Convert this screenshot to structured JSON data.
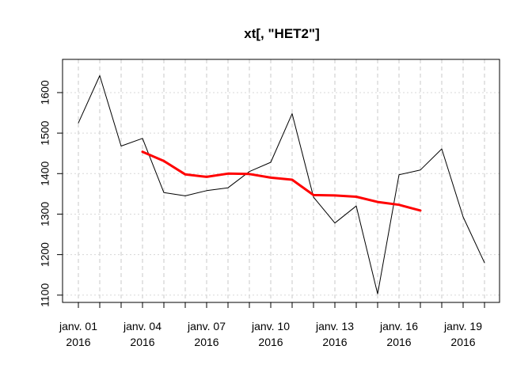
{
  "chart_data": {
    "type": "line",
    "title": "xt[, \"HET2\"]",
    "xlabel": "",
    "ylabel": "",
    "x": [
      "2016-01-01",
      "2016-01-02",
      "2016-01-03",
      "2016-01-04",
      "2016-01-05",
      "2016-01-06",
      "2016-01-07",
      "2016-01-08",
      "2016-01-09",
      "2016-01-10",
      "2016-01-11",
      "2016-01-12",
      "2016-01-13",
      "2016-01-14",
      "2016-01-15",
      "2016-01-16",
      "2016-01-17",
      "2016-01-18",
      "2016-01-19",
      "2016-01-20"
    ],
    "ylim": [
      1082,
      1682
    ],
    "yticks": [
      1100,
      1200,
      1300,
      1400,
      1500,
      1600
    ],
    "xtick_labels": [
      {
        "date": "2016-01-01",
        "line1": "janv. 01",
        "line2": "2016"
      },
      {
        "date": "2016-01-04",
        "line1": "janv. 04",
        "line2": "2016"
      },
      {
        "date": "2016-01-07",
        "line1": "janv. 07",
        "line2": "2016"
      },
      {
        "date": "2016-01-10",
        "line1": "janv. 10",
        "line2": "2016"
      },
      {
        "date": "2016-01-13",
        "line1": "janv. 13",
        "line2": "2016"
      },
      {
        "date": "2016-01-16",
        "line1": "janv. 16",
        "line2": "2016"
      },
      {
        "date": "2016-01-19",
        "line1": "janv. 19",
        "line2": "2016"
      }
    ],
    "grid": true,
    "series": [
      {
        "color": "#000000",
        "values": [
          1525,
          1642,
          1468,
          1487,
          1353,
          1345,
          1358,
          1365,
          1405,
          1428,
          1548,
          1342,
          1278,
          1320,
          1103,
          1397,
          1409,
          1461,
          1293,
          1180
        ]
      },
      {
        "color": "#ff0000",
        "values": [
          null,
          null,
          null,
          1454,
          1431,
          1398,
          1392,
          1400,
          1399,
          1390,
          1385,
          1347,
          1346,
          1343,
          1330,
          1323,
          1309,
          null,
          null,
          null
        ]
      }
    ]
  }
}
